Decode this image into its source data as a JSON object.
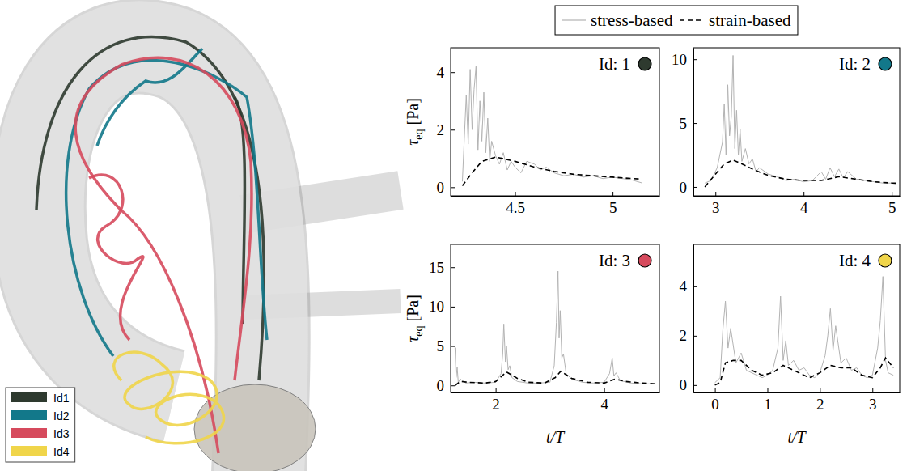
{
  "chart_data": [
    {
      "type": "line",
      "title": "Id: 1",
      "ylabel": "τeq [Pa]",
      "xlim": [
        4.17,
        5.24
      ],
      "xticks": [
        4.5,
        5
      ],
      "ylim": [
        -0.3,
        4.85
      ],
      "yticks": [
        0,
        2,
        4
      ],
      "series": [
        {
          "name": "stress-based",
          "color": "#b3b3b3",
          "line_style": "solid",
          "x": [
            4.23,
            4.25,
            4.26,
            4.27,
            4.28,
            4.29,
            4.3,
            4.31,
            4.32,
            4.33,
            4.34,
            4.35,
            4.36,
            4.37,
            4.38,
            4.4,
            4.42,
            4.44,
            4.46,
            4.48,
            4.5,
            4.53,
            4.56,
            4.6,
            4.63,
            4.66,
            4.7,
            4.75,
            4.8,
            4.85,
            4.9,
            4.95,
            5.0,
            5.05,
            5.1,
            5.15
          ],
          "values": [
            0.2,
            3.2,
            1.5,
            4.1,
            2.0,
            3.4,
            4.2,
            1.3,
            3.0,
            1.6,
            3.3,
            1.2,
            2.4,
            0.9,
            1.6,
            1.1,
            0.8,
            1.2,
            0.6,
            0.9,
            0.7,
            0.5,
            0.9,
            0.8,
            0.6,
            0.7,
            0.5,
            0.4,
            0.45,
            0.35,
            0.4,
            0.3,
            0.35,
            0.3,
            0.25,
            0.15
          ]
        },
        {
          "name": "strain-based",
          "color": "#000000",
          "line_style": "dashed",
          "x": [
            4.23,
            4.28,
            4.33,
            4.4,
            4.5,
            4.6,
            4.7,
            4.8,
            4.9,
            5.0,
            5.1,
            5.15
          ],
          "values": [
            0.05,
            0.5,
            0.9,
            1.05,
            0.9,
            0.7,
            0.55,
            0.45,
            0.4,
            0.35,
            0.3,
            0.28
          ]
        }
      ]
    },
    {
      "type": "line",
      "title": "Id: 2",
      "xlim": [
        2.75,
        5.09
      ],
      "xticks": [
        3,
        4,
        5
      ],
      "ylim": [
        -0.7,
        10.9
      ],
      "yticks": [
        0,
        5,
        10
      ],
      "series": [
        {
          "color": "#b3b3b3",
          "line_style": "solid",
          "x": [
            2.88,
            2.95,
            3.02,
            3.08,
            3.1,
            3.12,
            3.14,
            3.16,
            3.18,
            3.2,
            3.22,
            3.24,
            3.26,
            3.28,
            3.3,
            3.34,
            3.38,
            3.42,
            3.46,
            3.5,
            3.6,
            3.7,
            3.8,
            3.9,
            4.0,
            4.1,
            4.2,
            4.25,
            4.3,
            4.35,
            4.4,
            4.45,
            4.5,
            4.6,
            4.7,
            4.8,
            4.9,
            5.0,
            5.05
          ],
          "values": [
            0.3,
            0.5,
            1.5,
            3.5,
            6.5,
            2.5,
            8.0,
            4.0,
            5.5,
            10.3,
            3.0,
            6.0,
            2.5,
            4.5,
            2.0,
            3.0,
            1.8,
            2.2,
            1.2,
            1.5,
            1.0,
            0.8,
            0.5,
            0.6,
            0.4,
            0.5,
            1.2,
            0.6,
            1.5,
            0.8,
            1.4,
            0.7,
            1.2,
            0.6,
            0.5,
            0.4,
            0.3,
            0.3,
            0.2
          ]
        },
        {
          "color": "#000000",
          "line_style": "dashed",
          "x": [
            2.88,
            3.0,
            3.1,
            3.2,
            3.3,
            3.45,
            3.6,
            3.8,
            4.0,
            4.2,
            4.4,
            4.6,
            4.8,
            5.0,
            5.05
          ],
          "values": [
            0,
            1.0,
            1.8,
            2.1,
            1.8,
            1.3,
            0.9,
            0.6,
            0.5,
            0.5,
            0.8,
            0.6,
            0.4,
            0.3,
            0.3
          ]
        }
      ]
    },
    {
      "type": "line",
      "title": "Id: 3",
      "ylabel": "τeq [Pa]",
      "xlabel": "t/T",
      "xlim": [
        1.17,
        5.02
      ],
      "xticks": [
        2,
        4
      ],
      "ylim": [
        -0.9,
        17.9
      ],
      "yticks": [
        0,
        5,
        10,
        15
      ],
      "series": [
        {
          "color": "#b3b3b3",
          "line_style": "solid",
          "x": [
            1.25,
            1.27,
            1.29,
            1.31,
            1.35,
            1.45,
            1.6,
            1.8,
            2.0,
            2.1,
            2.13,
            2.15,
            2.18,
            2.2,
            2.23,
            2.26,
            2.3,
            2.4,
            2.6,
            2.8,
            3.0,
            3.08,
            3.12,
            3.15,
            3.17,
            3.19,
            3.22,
            3.25,
            3.3,
            3.4,
            3.6,
            3.8,
            4.0,
            4.1,
            4.15,
            4.18,
            4.22,
            4.3,
            4.5,
            4.7,
            4.95
          ],
          "values": [
            4.8,
            1.0,
            2.3,
            0.4,
            0.8,
            0.3,
            0.4,
            0.3,
            0.4,
            1.5,
            4.0,
            7.8,
            3.0,
            5.0,
            2.0,
            2.5,
            1.0,
            0.5,
            0.3,
            0.3,
            0.4,
            2.5,
            8.0,
            14.5,
            6.0,
            9.5,
            3.5,
            4.0,
            1.5,
            0.8,
            0.4,
            0.3,
            0.4,
            1.5,
            3.5,
            1.2,
            1.6,
            0.6,
            0.3,
            0.2,
            0.2
          ]
        },
        {
          "color": "#000000",
          "line_style": "dashed",
          "x": [
            1.25,
            1.35,
            1.5,
            1.8,
            2.0,
            2.2,
            2.4,
            2.6,
            2.9,
            3.1,
            3.2,
            3.4,
            3.7,
            4.0,
            4.2,
            4.4,
            4.7,
            4.95
          ],
          "values": [
            0,
            0.5,
            0.4,
            0.3,
            0.5,
            1.7,
            0.9,
            0.4,
            0.3,
            1.0,
            1.8,
            0.9,
            0.4,
            0.3,
            0.8,
            0.5,
            0.3,
            0.2
          ]
        }
      ]
    },
    {
      "type": "line",
      "title": "Id: 4",
      "xlabel": "t/T",
      "xlim": [
        -0.41,
        3.52
      ],
      "xticks": [
        0,
        1,
        2,
        3
      ],
      "ylim": [
        -0.3,
        5.7
      ],
      "yticks": [
        0,
        2,
        4
      ],
      "series": [
        {
          "color": "#b3b3b3",
          "line_style": "solid",
          "x": [
            0,
            0.1,
            0.15,
            0.2,
            0.25,
            0.3,
            0.4,
            0.5,
            0.6,
            0.7,
            0.8,
            0.9,
            1.0,
            1.1,
            1.2,
            1.25,
            1.3,
            1.35,
            1.4,
            1.5,
            1.6,
            1.7,
            1.8,
            1.9,
            2.0,
            2.1,
            2.15,
            2.2,
            2.25,
            2.3,
            2.4,
            2.5,
            2.6,
            2.7,
            2.8,
            2.9,
            3.0,
            3.1,
            3.15,
            3.2,
            3.25,
            3.3,
            3.4
          ],
          "values": [
            0.1,
            0.3,
            2.2,
            3.4,
            1.5,
            2.3,
            0.9,
            1.3,
            0.6,
            0.5,
            0.4,
            0.3,
            0.4,
            0.6,
            1.5,
            3.6,
            1.0,
            1.8,
            0.8,
            1.0,
            0.6,
            0.7,
            0.4,
            0.3,
            0.5,
            1.2,
            2.0,
            3.1,
            1.4,
            2.4,
            0.9,
            1.1,
            0.6,
            0.7,
            0.4,
            0.3,
            0.4,
            1.5,
            2.6,
            4.4,
            1.0,
            0.5,
            0.4
          ]
        },
        {
          "color": "#000000",
          "line_style": "dashed",
          "x": [
            0,
            0.1,
            0.2,
            0.35,
            0.5,
            0.7,
            0.9,
            1.1,
            1.3,
            1.5,
            1.8,
            2.0,
            2.2,
            2.4,
            2.6,
            2.8,
            3.0,
            3.15,
            3.25,
            3.4
          ],
          "values": [
            0,
            0.1,
            0.9,
            1.0,
            1.0,
            0.6,
            0.4,
            0.5,
            0.8,
            0.6,
            0.3,
            0.5,
            0.8,
            0.7,
            0.7,
            0.4,
            0.3,
            0.7,
            1.1,
            0.7
          ]
        }
      ]
    }
  ],
  "illustration": {
    "legend": [
      {
        "label": "Id1",
        "color": "#2e3a2f"
      },
      {
        "label": "Id2",
        "color": "#12788a"
      },
      {
        "label": "Id3",
        "color": "#d64a5d"
      },
      {
        "label": "Id4",
        "color": "#f0d54a"
      }
    ]
  }
}
